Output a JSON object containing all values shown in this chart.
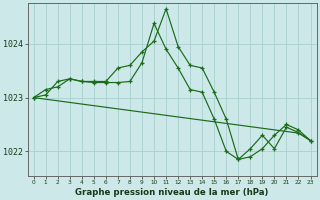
{
  "title": "Graphe pression niveau de la mer (hPa)",
  "bg_color": "#cce8e8",
  "grid_color": "#aacfcf",
  "line_color": "#1a6b1a",
  "marker_color": "#1a6b1a",
  "xlim": [
    -0.5,
    23.5
  ],
  "ylim": [
    1021.55,
    1024.75
  ],
  "yticks": [
    1022,
    1023,
    1024
  ],
  "xticks": [
    0,
    1,
    2,
    3,
    4,
    5,
    6,
    7,
    8,
    9,
    10,
    11,
    12,
    13,
    14,
    15,
    16,
    17,
    18,
    19,
    20,
    21,
    22,
    23
  ],
  "series1": [
    1023.0,
    1023.15,
    1023.2,
    1023.35,
    1023.3,
    1023.3,
    1023.3,
    1023.55,
    1023.6,
    1023.85,
    1024.05,
    1024.65,
    1023.95,
    1023.6,
    1023.55,
    1023.1,
    1022.6,
    1021.85,
    1021.9,
    1022.05,
    1022.3,
    1022.5,
    1022.4,
    1022.2
  ],
  "series2": [
    1023.0,
    1023.05,
    1023.3,
    1023.35,
    1023.3,
    1023.28,
    1023.28,
    1023.28,
    1023.3,
    1023.65,
    1024.38,
    1023.9,
    1023.55,
    1023.15,
    1023.1,
    1022.6,
    1022.0,
    1021.85,
    1022.05,
    1022.3,
    1022.05,
    1022.45,
    1022.35,
    1022.2
  ],
  "series3": [
    1023.0,
    1022.97,
    1022.94,
    1022.91,
    1022.88,
    1022.85,
    1022.82,
    1022.79,
    1022.76,
    1022.73,
    1022.7,
    1022.67,
    1022.64,
    1022.61,
    1022.58,
    1022.55,
    1022.52,
    1022.49,
    1022.46,
    1022.43,
    1022.4,
    1022.37,
    1022.34,
    1022.2
  ]
}
